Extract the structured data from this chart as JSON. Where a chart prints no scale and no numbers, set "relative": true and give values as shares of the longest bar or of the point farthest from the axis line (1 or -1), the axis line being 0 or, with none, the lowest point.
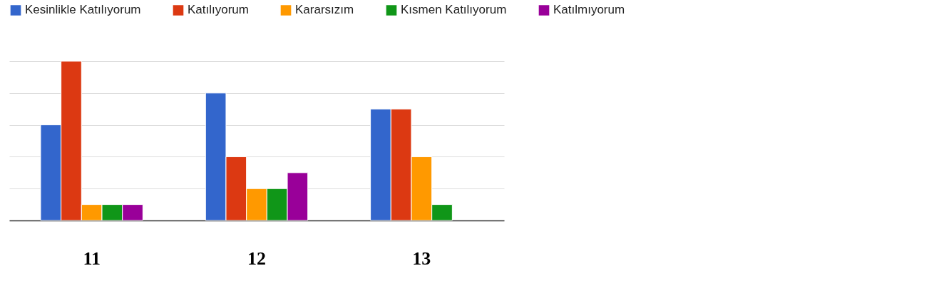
{
  "chart_data": {
    "type": "bar",
    "relative": true,
    "categories": [
      "11",
      "12",
      "13"
    ],
    "series": [
      {
        "name": "Kesinlikle Katılıyorum",
        "color": "#3366cc",
        "values": [
          0.6,
          0.8,
          0.7
        ]
      },
      {
        "name": "Katılıyorum",
        "color": "#dc3912",
        "values": [
          1,
          0.4,
          0.7
        ]
      },
      {
        "name": "Kararsızım",
        "color": "#ff9900",
        "values": [
          0.1,
          0.2,
          0.4
        ]
      },
      {
        "name": "Kısmen Katılıyorum",
        "color": "#109618",
        "values": [
          0.1,
          0.2,
          0.1
        ]
      },
      {
        "name": "Katılmıyorum",
        "color": "#990099",
        "values": [
          0.1,
          0.3,
          null
        ]
      }
    ],
    "grid": "y",
    "legend": "top"
  }
}
